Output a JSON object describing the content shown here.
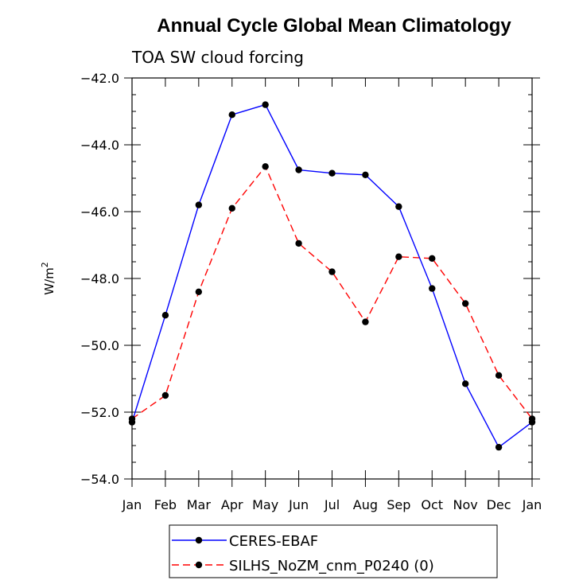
{
  "colors": {
    "background": "#ffffff",
    "axis": "#000000",
    "ceres": "#0000ff",
    "silhs": "#ff0000",
    "marker": "#000000"
  },
  "chart_data": {
    "type": "line",
    "title": "Annual Cycle Global Mean Climatology",
    "subtitle": "TOA SW cloud forcing",
    "ylabel_base": "W/m",
    "ylabel_exp": "2",
    "xlabel": "",
    "categories": [
      "Jan",
      "Feb",
      "Mar",
      "Apr",
      "May",
      "Jun",
      "Jul",
      "Aug",
      "Sep",
      "Oct",
      "Nov",
      "Dec",
      "Jan"
    ],
    "ylim": [
      -54.0,
      -42.0
    ],
    "yticks": [
      -42.0,
      -44.0,
      -46.0,
      -48.0,
      -50.0,
      -52.0,
      -54.0
    ],
    "ytick_labels": [
      "−42.0",
      "−44.0",
      "−46.0",
      "−48.0",
      "−50.0",
      "−52.0",
      "−54.0"
    ],
    "series": [
      {
        "name": "CERES-EBAF",
        "style": "solid",
        "color": "#0000ff",
        "values": [
          -52.3,
          -49.1,
          -45.8,
          -43.1,
          -42.8,
          -44.75,
          -44.85,
          -44.9,
          -45.85,
          -48.3,
          -51.15,
          -53.05,
          -52.3
        ]
      },
      {
        "name": "SILHS_NoZM_cnm_P0240 (0)",
        "style": "dashed",
        "color": "#ff0000",
        "values": [
          -52.2,
          -51.5,
          -48.4,
          -45.9,
          -44.65,
          -46.95,
          -47.8,
          -49.3,
          -47.35,
          -47.4,
          -48.75,
          -50.9,
          -52.2
        ]
      }
    ],
    "legend": {
      "position": "bottom-center",
      "labels": [
        "CERES-EBAF",
        "SILHS_NoZM_cnm_P0240 (0)"
      ]
    }
  }
}
